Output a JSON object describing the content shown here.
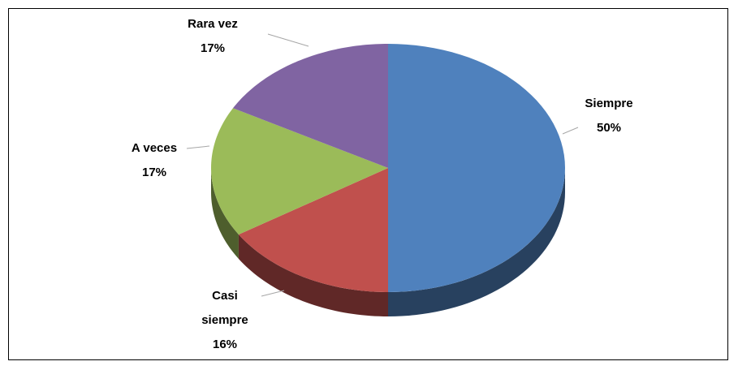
{
  "chart_data": {
    "type": "pie",
    "categories": [
      "Siempre",
      "Casi siempre",
      "A veces",
      "Rara vez"
    ],
    "values": [
      50,
      16,
      17,
      17
    ],
    "value_labels": [
      "50%",
      "16%",
      "17%",
      "17%"
    ],
    "colors": [
      "#4f81bd",
      "#c0504d",
      "#9bbb59",
      "#8064a2"
    ]
  }
}
